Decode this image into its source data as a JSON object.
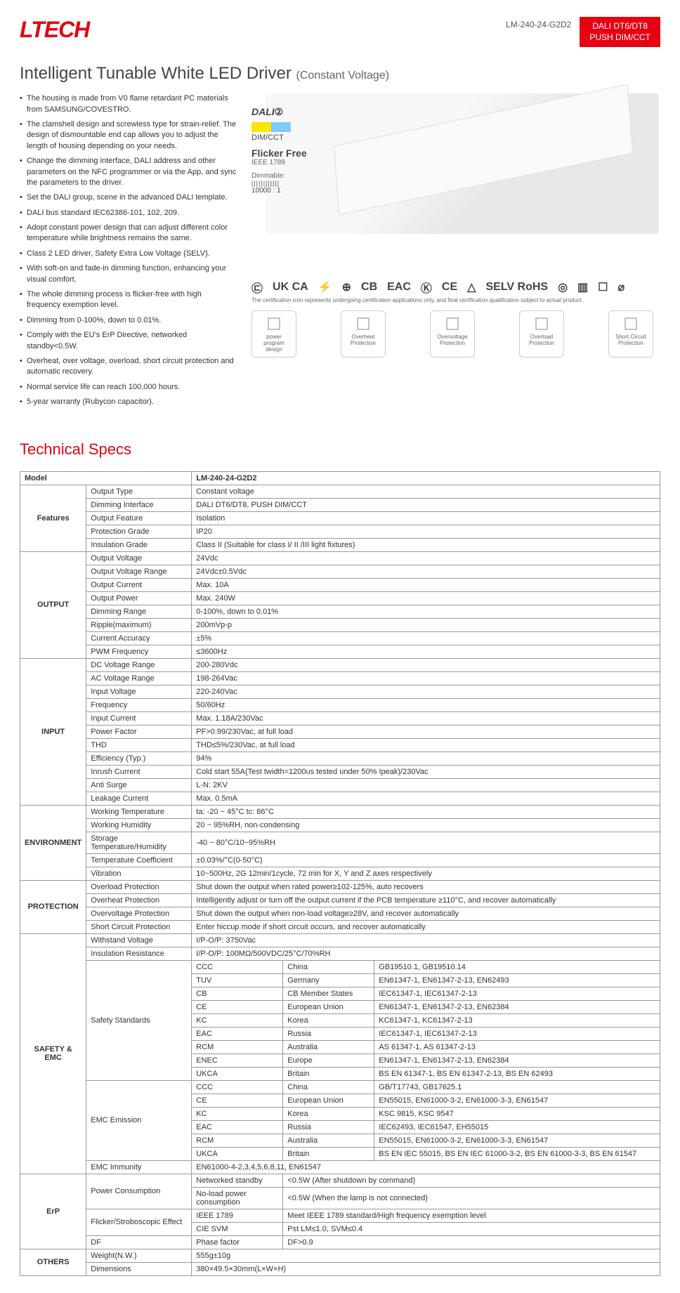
{
  "brand": "LTECH",
  "model": "LM-240-24-G2D2",
  "badge_line1": "DALI DT6/DT8",
  "badge_line2": "PUSH DIM/CCT",
  "title_main": "Intelligent Tunable White LED Driver",
  "title_sub": "(Constant Voltage)",
  "bullets": [
    "The housing is made from V0 flame retardant PC materials from SAMSUNG/COVESTRO.",
    "The clamshell design and screwless type for strain-relief. The design of dismountable end cap allows you to adjust the length of housing depending on your needs.",
    "Change the dimming interface, DALI address and other parameters on the NFC programmer or via the App, and sync the parameters to the driver.",
    "Set the DALI group, scene in the advanced DALI template.",
    "DALI bus standard IEC62386-101, 102, 209.",
    "Adopt constant power design that can adjust different color temperature while brightness remains the same.",
    "Class 2 LED driver, Safety Extra Low Voltage (SELV).",
    "With soft-on and fade-in dimming function, enhancing your visual comfort.",
    "The whole dimming process is flicker-free with high frequency exemption level.",
    "Dimming from 0-100%, down to 0.01%.",
    "Comply with the EU's ErP Directive, networked standby<0.5W.",
    "Overheat, over voltage, overload, short circuit protection and automatic recovery.",
    "Normal service life can reach 100,000 hours.",
    "5-year warranty (Rubycon capacitor)."
  ],
  "dali_label": "DALI",
  "dimcct_label": "DIM/CCT",
  "dimcct_colors": [
    "#ffe400",
    "#7ecbff"
  ],
  "flicker_free": "Flicker Free",
  "ieee": "IEEE 1789",
  "dimmable_label": "Dimmable:",
  "dimmable_ratio": "10000 : 1",
  "cert_marks": [
    "㉢",
    "UK CA",
    "⚡",
    "⊕",
    "CB",
    "EAC",
    "Ⓚ",
    "CE",
    "△",
    "SELV RoHS",
    "◎",
    "▥",
    "☐",
    "⌀"
  ],
  "cert_note": "The certification icon represents undergoing certification applications only, and final certification qualification subject to actual product.",
  "protection_icons": [
    {
      "label": "power program design"
    },
    {
      "label": "Overheat Protection"
    },
    {
      "label": "Overvoltage Protection"
    },
    {
      "label": "Overload Protection"
    },
    {
      "label": "Short Circuit Protection"
    }
  ],
  "section_title": "Technical Specs",
  "model_hdr": "Model",
  "sections": [
    {
      "cat": "Features",
      "rows": [
        [
          "Output Type",
          "Constant voltage"
        ],
        [
          "Dimming Interface",
          "DALI DT6/DT8, PUSH DIM/CCT"
        ],
        [
          "Output Feature",
          "Isolation"
        ],
        [
          "Protection Grade",
          "IP20"
        ],
        [
          "Insulation Grade",
          "Class II (Suitable for class I/ II /III light fixtures)"
        ]
      ]
    },
    {
      "cat": "OUTPUT",
      "rows": [
        [
          "Output Voltage",
          "24Vdc"
        ],
        [
          "Output Voltage Range",
          "24Vdc±0.5Vdc"
        ],
        [
          "Output Current",
          "Max. 10A"
        ],
        [
          "Output Power",
          "Max. 240W"
        ],
        [
          "Dimming Range",
          "0-100%, down to 0.01%"
        ],
        [
          "Ripple(maximum)",
          "200mVp-p"
        ],
        [
          "Current Accuracy",
          "±5%"
        ],
        [
          "PWM Frequency",
          "≤3600Hz"
        ]
      ]
    },
    {
      "cat": "INPUT",
      "rows": [
        [
          "DC Voltage Range",
          "200-280Vdc"
        ],
        [
          "AC Voltage Range",
          "198-264Vac"
        ],
        [
          "Input Voltage",
          "220-240Vac"
        ],
        [
          "Frequency",
          "50/60Hz"
        ],
        [
          "Input Current",
          "Max. 1.18A/230Vac"
        ],
        [
          "Power Factor",
          "PF>0.99/230Vac, at full load"
        ],
        [
          "THD",
          "THD≤5%/230Vac, at full load"
        ],
        [
          "Efficiency (Typ.)",
          "94%"
        ],
        [
          "Inrush Current",
          "Cold start 55A(Test twidth=1200us tested under 50% Ipeak)/230Vac"
        ],
        [
          "Anti Surge",
          "L-N: 2KV"
        ],
        [
          "Leakage Current",
          "Max. 0.5mA"
        ]
      ]
    },
    {
      "cat": "ENVIRONMENT",
      "rows": [
        [
          "Working Temperature",
          "ta: -20 ~ 45°C  tc: 86°C"
        ],
        [
          "Working Humidity",
          "20 ~ 95%RH, non-condensing"
        ],
        [
          "Storage Temperature/Humidity",
          "-40 ~ 80°C/10~95%RH"
        ],
        [
          "Temperature Coefficient",
          "±0.03%/°C(0-50°C)"
        ],
        [
          "Vibration",
          "10~500Hz, 2G 12min/1cycle, 72 min for X, Y and Z axes respectively"
        ]
      ]
    },
    {
      "cat": "PROTECTION",
      "rows": [
        [
          "Overload Protection",
          "Shut down the output when rated power≥102-125%, auto recovers"
        ],
        [
          "Overheat Protection",
          "Intelligently adjust or turn off the output current if the PCB temperature ≥110°C, and recover automatically"
        ],
        [
          "Overvoltage Protection",
          "Shut down the output when non-load voltage≥28V, and recover automatically"
        ],
        [
          "Short Circuit Protection",
          "Enter hiccup mode if short circuit occurs, and recover automatically"
        ]
      ]
    }
  ],
  "safety": {
    "cat": "SAFETY & EMC",
    "withstand": [
      "Withstand Voltage",
      "I/P-O/P: 3750Vac"
    ],
    "insulation": [
      "Insulation Resistance",
      "I/P-O/P: 100MΩ/500VDC/25°C/70%RH"
    ],
    "ss_label": "Safety Standards",
    "ss_rows": [
      [
        "CCC",
        "China",
        "GB19510.1, GB19510.14"
      ],
      [
        "TUV",
        "Germany",
        "EN61347-1, EN61347-2-13, EN62493"
      ],
      [
        "CB",
        "CB Member States",
        "IEC61347-1, IEC61347-2-13"
      ],
      [
        "CE",
        "European Union",
        "EN61347-1, EN61347-2-13, EN62384"
      ],
      [
        "KC",
        "Korea",
        "KC61347-1, KC61347-2-13"
      ],
      [
        "EAC",
        "Russia",
        "IEC61347-1, IEC61347-2-13"
      ],
      [
        "RCM",
        "Australia",
        "AS 61347-1, AS 61347-2-13"
      ],
      [
        "ENEC",
        "Europe",
        "EN61347-1, EN61347-2-13, EN62384"
      ],
      [
        "UKCA",
        "Britain",
        "BS EN 61347-1, BS EN 61347-2-13, BS EN 62493"
      ]
    ],
    "emc_label": "EMC Emission",
    "emc_rows": [
      [
        "CCC",
        "China",
        "GB/T17743, GB17625.1"
      ],
      [
        "CE",
        "European Union",
        "EN55015, EN61000-3-2, EN61000-3-3, EN61547"
      ],
      [
        "KC",
        "Korea",
        "KSC 9815, KSC 9547"
      ],
      [
        "EAC",
        "Russia",
        "IEC62493, IEC61547, EH55015"
      ],
      [
        "RCM",
        "Australia",
        "EN55015, EN61000-3-2, EN61000-3-3, EN61547"
      ],
      [
        "UKCA",
        "Britain",
        "BS EN IEC 55015, BS EN IEC 61000-3-2, BS EN 61000-3-3, BS EN 61547"
      ]
    ],
    "emc_imm": [
      "EMC Immunity",
      "EN61000-4-2,3,4,5,6,8,11,  EN61547"
    ]
  },
  "erp": {
    "cat": "ErP",
    "pc_label": "Power Consumption",
    "pc_rows": [
      [
        "Networked standby",
        "<0.5W (After shutdown by command)"
      ],
      [
        "No-load power consumption",
        "<0.5W  (When the lamp is not connected)"
      ]
    ],
    "fs_label": "Flicker/Stroboscopic Effect",
    "fs_rows": [
      [
        "IEEE 1789",
        "Meet IEEE 1789 standard/High frequency exemption level"
      ],
      [
        "CIE SVM",
        "Pst LM≤1.0,  SVM≤0.4"
      ]
    ],
    "df": [
      "DF",
      "Phase factor",
      "DF>0.9"
    ]
  },
  "others": {
    "cat": "OTHERS",
    "rows": [
      [
        "Weight(N.W.)",
        "555g±10g"
      ],
      [
        "Dimensions",
        "380×49.5×30mm(L×W×H)"
      ]
    ]
  }
}
